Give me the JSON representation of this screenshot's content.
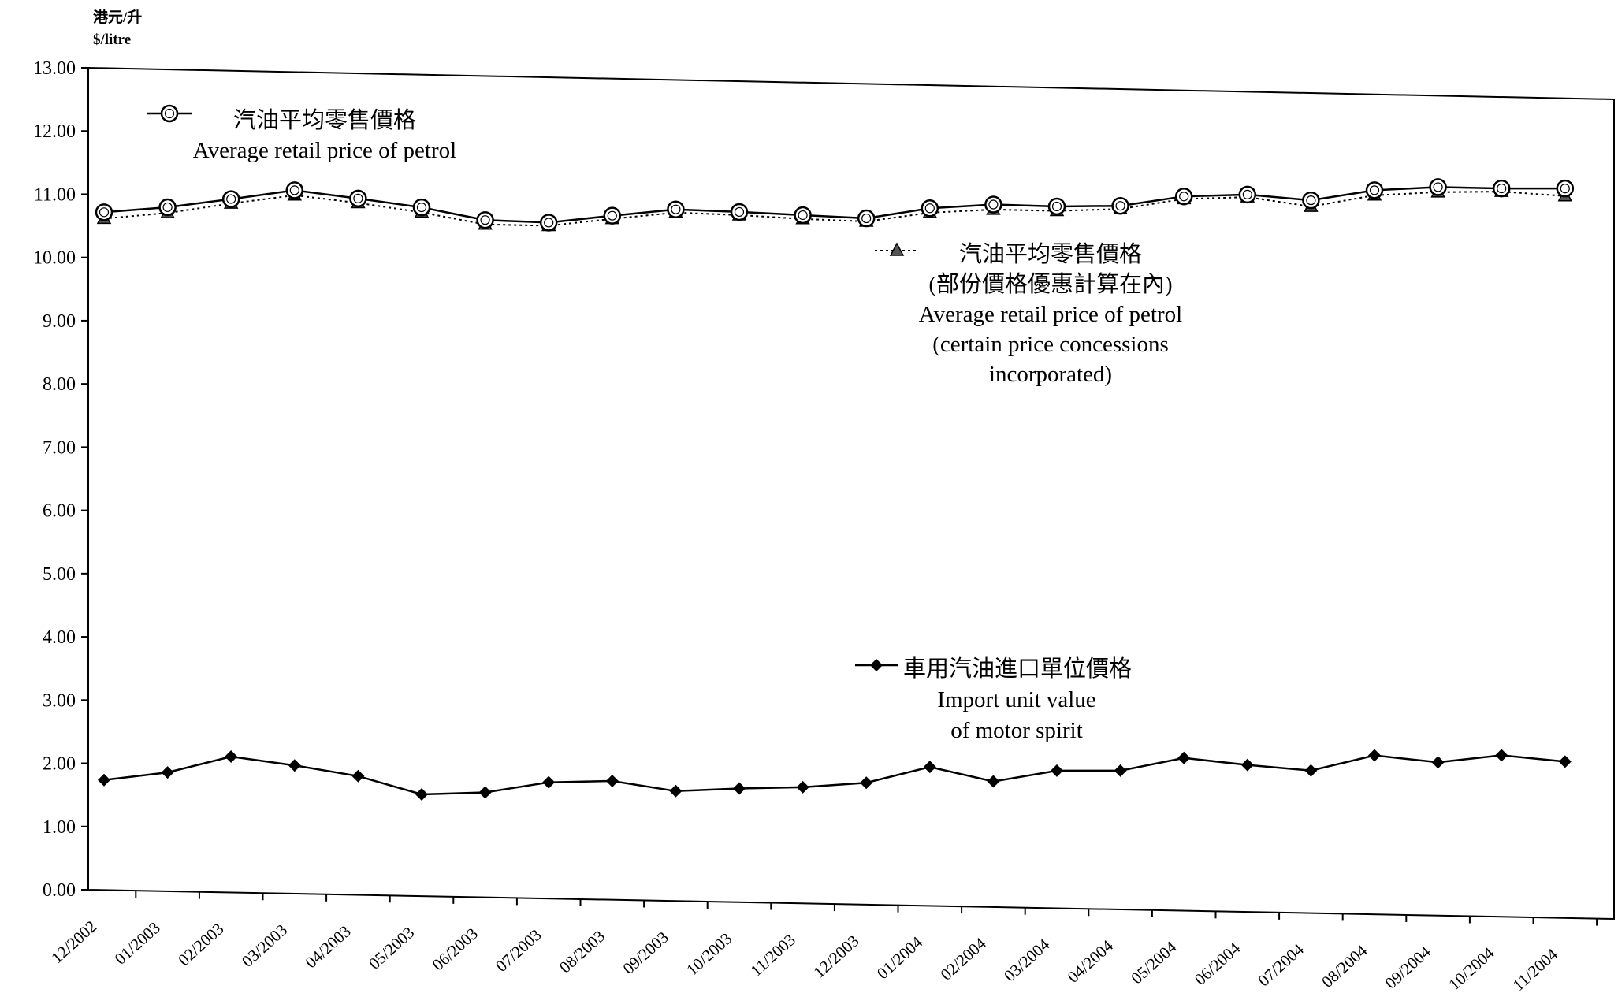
{
  "chart_data": {
    "type": "line",
    "unit_label_zh": "港元/升",
    "unit_label_en": "$/litre",
    "ylim": [
      0,
      13
    ],
    "y_ticks": [
      "0.00",
      "1.00",
      "2.00",
      "3.00",
      "4.00",
      "5.00",
      "6.00",
      "7.00",
      "8.00",
      "9.00",
      "10.00",
      "11.00",
      "12.00",
      "13.00"
    ],
    "categories": [
      "12/2002",
      "01/2003",
      "02/2003",
      "03/2003",
      "04/2003",
      "05/2003",
      "06/2003",
      "07/2003",
      "08/2003",
      "09/2003",
      "10/2003",
      "11/2003",
      "12/2003",
      "01/2004",
      "02/2004",
      "03/2004",
      "04/2004",
      "05/2004",
      "06/2004",
      "07/2004",
      "08/2004",
      "09/2004",
      "10/2004",
      "11/2004"
    ],
    "series": [
      {
        "key": "retail",
        "style": "circle-solid",
        "label_lines": [
          "汽油平均零售價格",
          "Average retail price of petrol"
        ],
        "values": [
          10.72,
          10.82,
          10.97,
          11.13,
          11.02,
          10.9,
          10.72,
          10.7,
          10.83,
          10.95,
          10.93,
          10.9,
          10.87,
          11.05,
          11.13,
          11.12,
          11.15,
          11.32,
          11.37,
          11.3,
          11.48,
          11.55,
          11.55,
          11.57
        ]
      },
      {
        "key": "concession",
        "style": "triangle-dotted",
        "label_lines": [
          "汽油平均零售價格",
          "(部份價格優惠計算在內)",
          "Average retail price of petrol",
          "(certain price concessions",
          "incorporated)"
        ],
        "values": [
          10.62,
          10.73,
          10.9,
          11.05,
          10.95,
          10.82,
          10.65,
          10.65,
          10.78,
          10.9,
          10.88,
          10.84,
          10.82,
          10.98,
          11.05,
          11.05,
          11.1,
          11.28,
          11.33,
          11.2,
          11.4,
          11.47,
          11.5,
          11.45
        ]
      },
      {
        "key": "import",
        "style": "diamond-solid",
        "label_lines": [
          "車用汽油進口單位價格",
          "Import unit value",
          "of motor spirit"
        ],
        "values": [
          1.74,
          1.88,
          2.15,
          2.03,
          1.88,
          1.61,
          1.66,
          1.84,
          1.88,
          1.74,
          1.8,
          1.84,
          1.93,
          2.2,
          1.99,
          2.18,
          2.2,
          2.42,
          2.33,
          2.26,
          2.52,
          2.43,
          2.56,
          2.48
        ]
      }
    ]
  }
}
